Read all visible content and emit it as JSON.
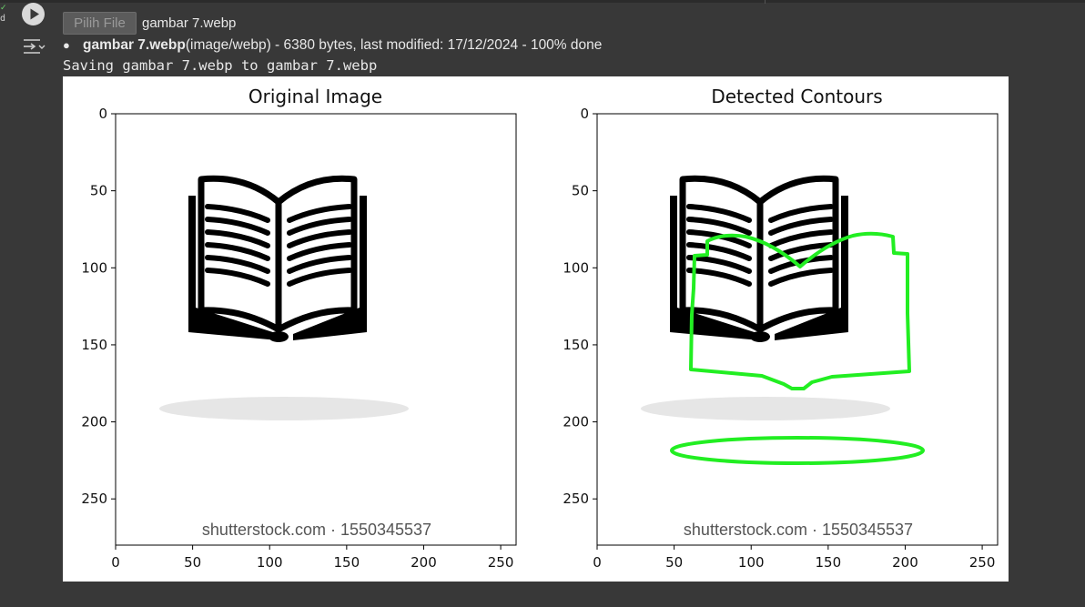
{
  "cell": {
    "status_mark": "✓",
    "gutter_letter": "d"
  },
  "upload": {
    "button_label": "Pilih File",
    "chosen_file": "gambar 7.webp",
    "file_name": "gambar 7.webp",
    "file_details": "(image/webp) - 6380 bytes, last modified: 17/12/2024 - 100% done",
    "saving_message": "Saving gambar 7.webp to gambar 7.webp"
  },
  "figure": {
    "watermark": "shutterstock.com · 1550345537",
    "contour_color": "#22ee22"
  },
  "chart_data": [
    {
      "type": "image",
      "title": "Original Image",
      "xlim": [
        0,
        260
      ],
      "ylim": [
        280,
        0
      ],
      "xticks": [
        0,
        50,
        100,
        150,
        200,
        250
      ],
      "yticks": [
        0,
        50,
        100,
        150,
        200,
        250
      ]
    },
    {
      "type": "image",
      "title": "Detected Contours",
      "xlim": [
        0,
        260
      ],
      "ylim": [
        280,
        0
      ],
      "xticks": [
        0,
        50,
        100,
        150,
        200,
        250
      ],
      "yticks": [
        0,
        50,
        100,
        150,
        200,
        250
      ]
    }
  ]
}
